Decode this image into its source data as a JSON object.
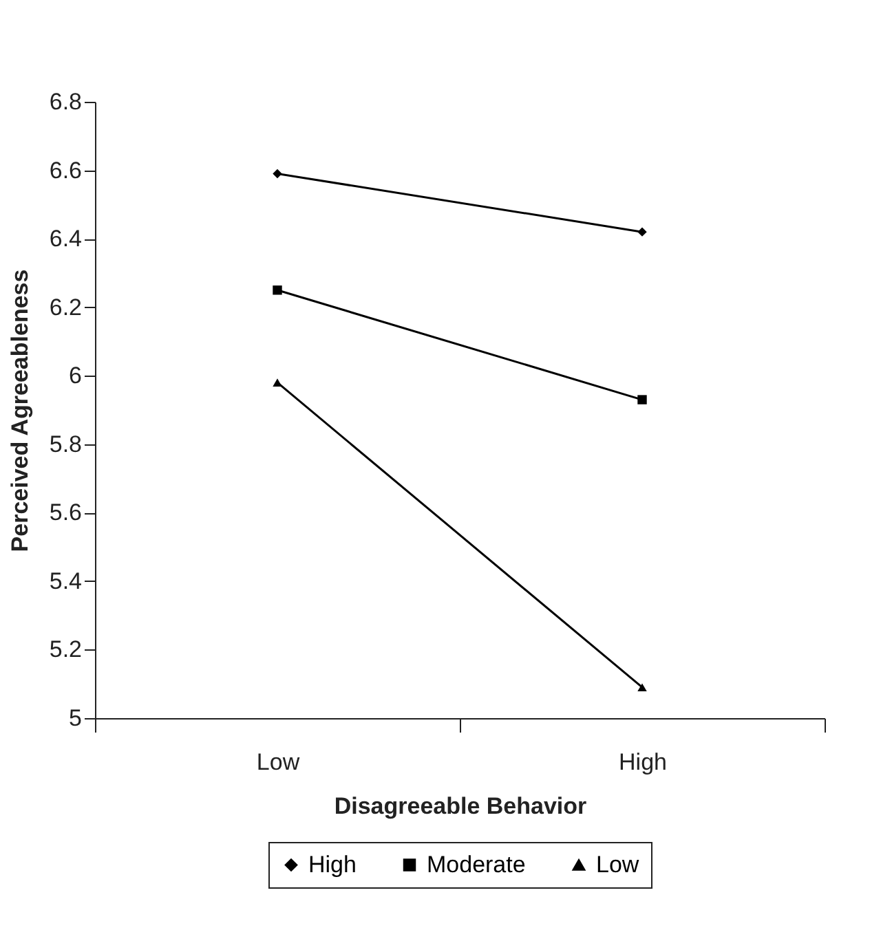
{
  "chart_data": {
    "type": "line",
    "xlabel": "Disagreeable Behavior",
    "ylabel": "Perceived Agreeableness",
    "categories": [
      "Low",
      "High"
    ],
    "series": [
      {
        "name": "High",
        "color": "#000000",
        "marker": "diamond",
        "values": [
          6.59,
          6.42
        ]
      },
      {
        "name": "Moderate",
        "color": "#000000",
        "marker": "square",
        "values": [
          6.25,
          5.93
        ]
      },
      {
        "name": "Low",
        "color": "#000000",
        "marker": "triangle",
        "values": [
          5.98,
          5.09
        ]
      }
    ],
    "ylim": [
      5,
      6.8
    ],
    "yticks": [
      5,
      5.2,
      5.4,
      5.6,
      5.8,
      6,
      6.2,
      6.4,
      6.6,
      6.8
    ],
    "grid": false,
    "legend": "bottom",
    "line_style": "solid"
  }
}
